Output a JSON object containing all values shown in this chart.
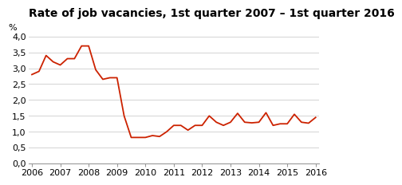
{
  "title": "Rate of job vacancies, 1st quarter 2007 – 1st quarter 2016",
  "ylabel": "%",
  "line_color": "#cc2200",
  "background_color": "#ffffff",
  "grid_color": "#cccccc",
  "ylim": [
    0.0,
    4.0
  ],
  "yticks": [
    0.0,
    0.5,
    1.0,
    1.5,
    2.0,
    2.5,
    3.0,
    3.5,
    4.0
  ],
  "xtick_labels": [
    "2006",
    "2007",
    "2008",
    "2009",
    "2010",
    "2011",
    "2012",
    "2013",
    "2014",
    "2015",
    "2016"
  ],
  "xtick_positions": [
    0,
    4,
    8,
    12,
    16,
    20,
    24,
    28,
    32,
    36,
    40
  ],
  "values": [
    2.8,
    2.9,
    3.4,
    3.2,
    3.1,
    3.3,
    3.3,
    3.7,
    3.7,
    2.95,
    2.65,
    2.7,
    2.7,
    1.5,
    0.82,
    0.82,
    0.82,
    0.88,
    0.85,
    1.0,
    1.2,
    1.2,
    1.05,
    1.2,
    1.2,
    1.5,
    1.3,
    1.2,
    1.3,
    1.58,
    1.3,
    1.28,
    1.3,
    1.6,
    1.2,
    1.25,
    1.25,
    1.55,
    1.3,
    1.27,
    1.45
  ],
  "title_fontsize": 10,
  "tick_fontsize": 8,
  "ylabel_fontsize": 8,
  "linewidth": 1.3
}
